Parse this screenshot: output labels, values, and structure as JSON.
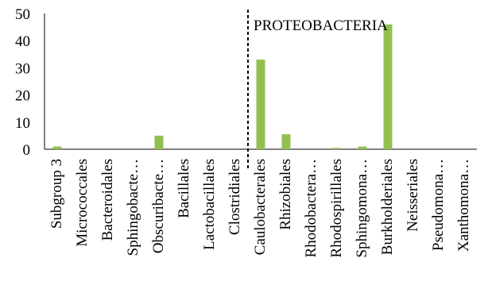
{
  "chart_data": {
    "type": "bar",
    "categories": [
      "Subgroup 3",
      "Micrococcales",
      "Bacteroidales",
      "Sphingobacte…",
      "Obscuribacte…",
      "Bacillales",
      "Lactobacillales",
      "Clostridiales",
      "Caulobacterales",
      "Rhizobiales",
      "Rhodobactera…",
      "Rhodospirillales",
      "Sphingomona…",
      "Burkholderiales",
      "Neisseriales",
      "Pseudomona…",
      "Xanthomona…"
    ],
    "values": [
      1,
      0,
      0,
      0,
      5,
      0,
      0,
      0,
      33,
      5.5,
      0,
      0.5,
      1,
      46,
      0,
      0,
      0
    ],
    "ylim": [
      0,
      50
    ],
    "yticks": [
      "0",
      "10",
      "20",
      "30",
      "40",
      "50"
    ],
    "bar_color": "#92c050",
    "grid": false,
    "annotation": "PROTEOBACTERIA",
    "divider_before_category": "Caulobacterales"
  }
}
